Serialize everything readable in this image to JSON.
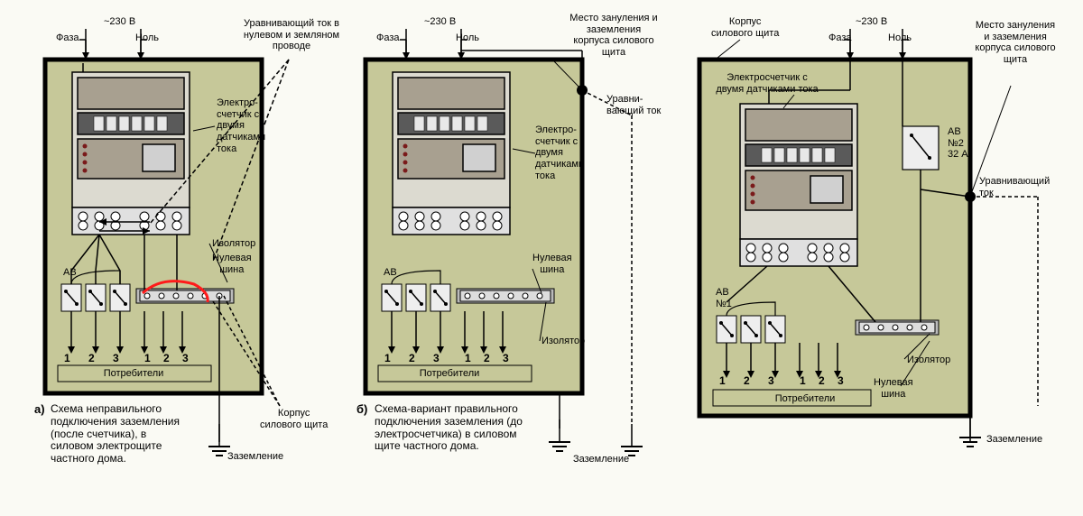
{
  "bg": "#fafaf4",
  "panel_fill": "#c6c899",
  "panel_stroke": "#000000",
  "meter_fill": "#dcdad0",
  "meter_dark": "#5a5a5a",
  "meter_mid": "#a8a090",
  "busbar_fill": "#c8c8c8",
  "highlight": "#ff1a1a",
  "voltage": "~230 В",
  "phase": "Фаза",
  "neutral": "Ноль",
  "eq_both": "Уравнивающий ток в нулевом и земляном проводе",
  "eq_cur": "Уравни-\nвающий ток",
  "eq_cur2": "Уравнивающий\nток",
  "meter_lbl": "Электро-\nсчетчик с\nдвумя\nдатчиками\nтока",
  "meter_lbl2": "Электросчетчик с\nдвумя датчиками тока",
  "isolator": "Изолятор",
  "neutral_bus": "Нулевая\nшина",
  "ab": "АВ",
  "ab1": "АВ\n№1",
  "ab2": "АВ\n№2\n32 А",
  "consumers": "Потребители",
  "enclosure": "Корпус\nсилового щита",
  "ground": "Заземление",
  "bond_pt": "Место зануления и\nзаземления\nкорпуса силового\nщита",
  "bond_pt2": "Место зануления\nи заземления\nкорпуса силового\nщита",
  "caption_a": "Схема неправильного\nподключения заземления\n(после счетчика), в\nсиловом электрощите\nчастного дома.",
  "caption_b": "Схема-вариант правильного\nподключения заземления (до\nэлектросчетчика) в силовом\nщите частного дома.",
  "nums": [
    "1",
    "2",
    "3",
    "1",
    "2",
    "3"
  ],
  "a": "а)",
  "b": "б)"
}
